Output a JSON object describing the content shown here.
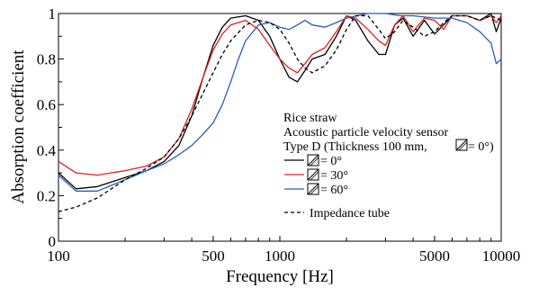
{
  "chart_data": {
    "type": "line",
    "xlabel": "Frequency [Hz]",
    "ylabel": "Absorption coefficient",
    "x_scale": "log",
    "xlim": [
      100,
      10000
    ],
    "ylim": [
      0,
      1
    ],
    "x_ticks": [
      {
        "value": 100,
        "label": "100"
      },
      {
        "value": 500,
        "label": "500"
      },
      {
        "value": 1000,
        "label": "1000"
      },
      {
        "value": 5000,
        "label": "5000"
      },
      {
        "value": 10000,
        "label": "10000"
      }
    ],
    "y_ticks": [
      {
        "value": 0,
        "label": "0"
      },
      {
        "value": 0.2,
        "label": "0.2"
      },
      {
        "value": 0.4,
        "label": "0.4"
      },
      {
        "value": 0.6,
        "label": "0.6"
      },
      {
        "value": 0.8,
        "label": "0.8"
      },
      {
        "value": 1,
        "label": "1"
      }
    ],
    "grid": false,
    "legend_position": "center-right",
    "legend_text": {
      "line1": "Rice straw",
      "line2": "Acoustic particle velocity sensor",
      "line3_prefix": "Type D (Thickness 100 mm, ",
      "line3_suffix": "= 0°)"
    },
    "series": [
      {
        "name": "= 0°",
        "color": "#000000",
        "dash": "solid",
        "points": [
          [
            100,
            0.3
          ],
          [
            120,
            0.23
          ],
          [
            150,
            0.24
          ],
          [
            200,
            0.28
          ],
          [
            250,
            0.31
          ],
          [
            300,
            0.35
          ],
          [
            350,
            0.42
          ],
          [
            400,
            0.55
          ],
          [
            450,
            0.72
          ],
          [
            500,
            0.86
          ],
          [
            550,
            0.94
          ],
          [
            600,
            0.98
          ],
          [
            700,
            0.99
          ],
          [
            800,
            0.97
          ],
          [
            900,
            0.9
          ],
          [
            1000,
            0.8
          ],
          [
            1100,
            0.72
          ],
          [
            1200,
            0.7
          ],
          [
            1300,
            0.75
          ],
          [
            1400,
            0.8
          ],
          [
            1600,
            0.82
          ],
          [
            1800,
            0.9
          ],
          [
            2000,
            0.99
          ],
          [
            2200,
            0.97
          ],
          [
            2500,
            0.88
          ],
          [
            2800,
            0.82
          ],
          [
            3000,
            0.82
          ],
          [
            3300,
            0.95
          ],
          [
            3600,
            0.98
          ],
          [
            4000,
            0.9
          ],
          [
            4500,
            0.97
          ],
          [
            5000,
            0.91
          ],
          [
            5500,
            0.95
          ],
          [
            6000,
            0.99
          ],
          [
            7000,
            0.99
          ],
          [
            8000,
            0.97
          ],
          [
            9000,
            1.0
          ],
          [
            9500,
            0.92
          ],
          [
            10000,
            0.98
          ]
        ]
      },
      {
        "name": "= 30°",
        "color": "#e02020",
        "dash": "solid",
        "points": [
          [
            100,
            0.35
          ],
          [
            120,
            0.3
          ],
          [
            150,
            0.29
          ],
          [
            200,
            0.31
          ],
          [
            250,
            0.33
          ],
          [
            300,
            0.37
          ],
          [
            350,
            0.45
          ],
          [
            400,
            0.58
          ],
          [
            450,
            0.72
          ],
          [
            500,
            0.84
          ],
          [
            550,
            0.91
          ],
          [
            600,
            0.95
          ],
          [
            700,
            0.97
          ],
          [
            800,
            0.93
          ],
          [
            900,
            0.86
          ],
          [
            1000,
            0.8
          ],
          [
            1100,
            0.76
          ],
          [
            1200,
            0.74
          ],
          [
            1300,
            0.78
          ],
          [
            1400,
            0.82
          ],
          [
            1600,
            0.85
          ],
          [
            1800,
            0.92
          ],
          [
            2000,
            0.99
          ],
          [
            2200,
            0.98
          ],
          [
            2500,
            0.93
          ],
          [
            2800,
            0.88
          ],
          [
            3000,
            0.86
          ],
          [
            3300,
            0.95
          ],
          [
            3600,
            0.99
          ],
          [
            4000,
            0.92
          ],
          [
            4500,
            0.98
          ],
          [
            5000,
            0.97
          ],
          [
            5500,
            0.93
          ],
          [
            6000,
            0.99
          ],
          [
            7000,
            0.99
          ],
          [
            8000,
            0.97
          ],
          [
            9000,
            0.99
          ],
          [
            9500,
            0.96
          ],
          [
            10000,
            0.99
          ]
        ]
      },
      {
        "name": "= 60°",
        "color": "#2b5cb8",
        "dash": "solid",
        "points": [
          [
            100,
            0.29
          ],
          [
            120,
            0.22
          ],
          [
            150,
            0.22
          ],
          [
            200,
            0.27
          ],
          [
            250,
            0.31
          ],
          [
            300,
            0.34
          ],
          [
            350,
            0.38
          ],
          [
            400,
            0.42
          ],
          [
            450,
            0.47
          ],
          [
            500,
            0.52
          ],
          [
            550,
            0.6
          ],
          [
            600,
            0.7
          ],
          [
            650,
            0.8
          ],
          [
            700,
            0.88
          ],
          [
            800,
            0.95
          ],
          [
            900,
            0.96
          ],
          [
            1000,
            0.94
          ],
          [
            1100,
            0.93
          ],
          [
            1200,
            0.95
          ],
          [
            1300,
            0.97
          ],
          [
            1400,
            0.95
          ],
          [
            1600,
            0.94
          ],
          [
            1800,
            0.96
          ],
          [
            2000,
            0.98
          ],
          [
            2500,
            1.0
          ],
          [
            3000,
            1.0
          ],
          [
            3500,
            0.99
          ],
          [
            4000,
            0.99
          ],
          [
            5000,
            0.98
          ],
          [
            6000,
            0.98
          ],
          [
            7000,
            0.96
          ],
          [
            8000,
            0.92
          ],
          [
            9000,
            0.87
          ],
          [
            9500,
            0.78
          ],
          [
            10000,
            0.8
          ]
        ]
      },
      {
        "name": "Impedance tube",
        "color": "#000000",
        "dash": "dashed",
        "points": [
          [
            100,
            0.13
          ],
          [
            120,
            0.15
          ],
          [
            150,
            0.19
          ],
          [
            200,
            0.27
          ],
          [
            250,
            0.32
          ],
          [
            300,
            0.37
          ],
          [
            350,
            0.45
          ],
          [
            400,
            0.55
          ],
          [
            450,
            0.65
          ],
          [
            500,
            0.74
          ],
          [
            550,
            0.82
          ],
          [
            600,
            0.88
          ],
          [
            700,
            0.95
          ],
          [
            800,
            0.97
          ],
          [
            900,
            0.96
          ],
          [
            1000,
            0.93
          ],
          [
            1100,
            0.87
          ],
          [
            1200,
            0.8
          ],
          [
            1300,
            0.76
          ],
          [
            1400,
            0.74
          ],
          [
            1600,
            0.77
          ],
          [
            1800,
            0.84
          ],
          [
            2000,
            0.93
          ],
          [
            2200,
            0.99
          ],
          [
            2500,
            0.99
          ],
          [
            2800,
            0.93
          ],
          [
            3000,
            0.89
          ],
          [
            3300,
            0.92
          ],
          [
            3600,
            0.97
          ],
          [
            4000,
            0.94
          ],
          [
            4500,
            0.9
          ],
          [
            5000,
            0.92
          ],
          [
            5500,
            0.96
          ],
          [
            6000,
            0.99
          ],
          [
            7000,
            0.99
          ],
          [
            8000,
            0.97
          ],
          [
            9000,
            0.99
          ],
          [
            10000,
            0.97
          ]
        ]
      }
    ]
  }
}
